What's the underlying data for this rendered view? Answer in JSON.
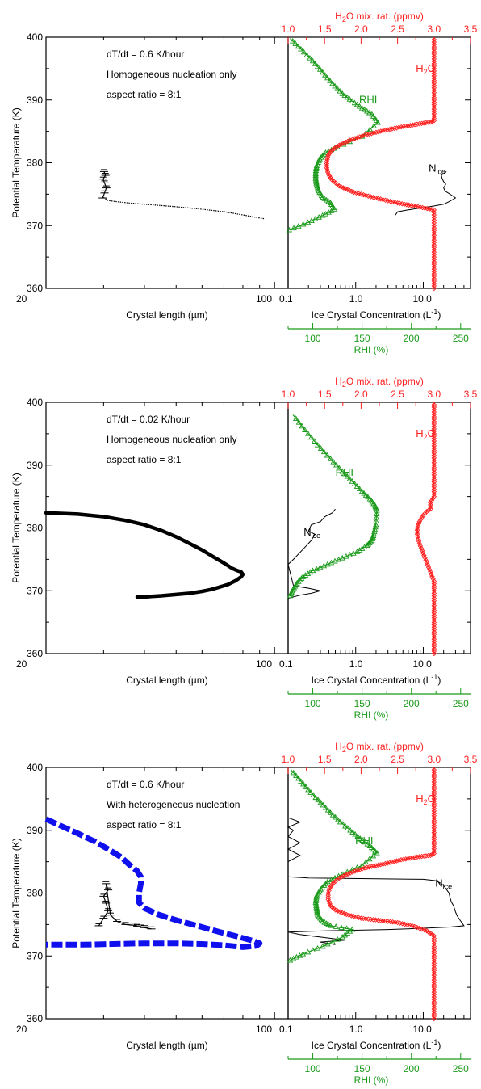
{
  "colors": {
    "axis": "#000000",
    "h2o": "#ff2020",
    "rhi": "#1a9a1a",
    "crystal_blue": "#1010ee",
    "nice": "#000000"
  },
  "chart_data": [
    {
      "panel": "top",
      "type": "line",
      "annotations": [
        "dT/dt = 0.6 K/hour",
        "Homogeneous nucleation only",
        "aspect ratio = 8:1"
      ],
      "left": {
        "xlabel": "Crystal length (µm)",
        "ylabel": "Potential Temperature (K)",
        "x_scale": "log",
        "xlim": [
          20,
          110
        ],
        "ylim": [
          360,
          400
        ],
        "x_ticks": [
          "20",
          "100"
        ],
        "y_ticks": [
          "360",
          "370",
          "380",
          "390",
          "400"
        ],
        "series": [
          {
            "color": "black",
            "style": "dots",
            "x": [
              30,
              30.3,
              31,
              33,
              36,
              40,
              45,
              50,
              55,
              60,
              65,
              70,
              76,
              80,
              84,
              88,
              93
            ],
            "y": [
              374.5,
              374.3,
              374.0,
              373.8,
              373.6,
              373.4,
              373.2,
              373.0,
              372.8,
              372.6,
              372.4,
              372.2,
              371.9,
              371.7,
              371.5,
              371.3,
              371.1
            ]
          },
          {
            "color": "black",
            "style": "hatched",
            "x": [
              29.8,
              30.2,
              30.6,
              30.2,
              29.9,
              30.4,
              30.1
            ],
            "y": [
              374.4,
              375.2,
              376.0,
              376.8,
              377.4,
              378.0,
              378.6
            ]
          }
        ]
      },
      "right": {
        "xlabel": "Ice Crystal Concentration (L",
        "xlabel_sup": "-1",
        "xlabel_end": ")",
        "x_scale": "log",
        "xlim": [
          0.1,
          50
        ],
        "x_ticks": [
          "0.1",
          "1.0",
          "10.0"
        ],
        "top_axis": {
          "label": "H",
          "label_sub": "2",
          "label_end": "O mix. rat. (ppmv)",
          "xlim": [
            1.0,
            3.5
          ],
          "ticks": [
            "1.0",
            "1.5",
            "2.0",
            "2.5",
            "3.0",
            "3.5"
          ]
        },
        "bottom_axis2": {
          "label": "RHI (%)",
          "xlim": [
            75,
            260
          ],
          "ticks": [
            "100",
            "150",
            "200",
            "250"
          ]
        },
        "labels": {
          "h2o": "H",
          "h2o_sub": "2",
          "h2o_end": "O",
          "rhi": "RHI",
          "nice": "N",
          "nice_sub": "ice"
        },
        "label_positions_data": {
          "h2o": [
            2.75,
            394.5
          ],
          "rhi": [
            147,
            389.5
          ],
          "nice": [
            12,
            378.6
          ]
        },
        "h2o": {
          "x": [
            3.0,
            3.0,
            3.0,
            3.0,
            2.78,
            2.5,
            2.2,
            1.9,
            1.7,
            1.6,
            1.55,
            1.53,
            1.53,
            1.55,
            1.6,
            1.7,
            1.85,
            2.05,
            2.3,
            2.55,
            2.8,
            2.95,
            3.0,
            3.0,
            3.0,
            3.0
          ],
          "y": [
            360,
            370,
            371.3,
            372.5,
            373.0,
            373.6,
            374.4,
            375.3,
            376.3,
            377.3,
            378.2,
            379.2,
            380.2,
            381.2,
            382.0,
            382.8,
            383.6,
            384.4,
            385.1,
            385.7,
            386.2,
            386.5,
            386.7,
            390,
            395,
            400
          ]
        },
        "rhi": {
          "x": [
            76,
            95,
            110,
            122,
            118,
            110,
            106,
            104,
            103,
            103,
            104,
            107,
            113,
            125,
            150,
            166,
            160,
            150,
            140,
            130,
            120,
            110,
            100,
            88,
            77
          ],
          "y": [
            369.3,
            370.5,
            371.6,
            372.6,
            373.6,
            374.5,
            375.5,
            376.5,
            377.5,
            378.5,
            379.5,
            380.6,
            381.6,
            382.5,
            384.2,
            386.4,
            387.7,
            388.7,
            389.8,
            391.0,
            392.6,
            394.4,
            396.2,
            398.1,
            399.8
          ]
        },
        "nice": {
          "x": [
            3.8,
            4.2,
            6.0,
            9.0,
            14.0,
            20.0,
            24.0,
            30.0,
            25.0,
            21.0,
            20.0,
            21.5,
            20.0,
            19.0,
            18.5,
            20.0,
            21.5,
            22.0
          ],
          "y": [
            371.6,
            372.2,
            372.5,
            372.8,
            373.1,
            373.4,
            373.8,
            374.4,
            375.0,
            375.5,
            376.0,
            376.6,
            377.0,
            377.5,
            378.0,
            378.3,
            378.5,
            378.6
          ]
        }
      }
    },
    {
      "panel": "middle",
      "type": "line",
      "annotations": [
        "dT/dt = 0.02 K/hour",
        "Homogeneous nucleation only",
        "aspect ratio = 8:1"
      ],
      "left": {
        "xlabel": "Crystal length (µm)",
        "ylabel": "Potential Temperature (K)",
        "x_scale": "log",
        "xlim": [
          20,
          110
        ],
        "ylim": [
          360,
          400
        ],
        "x_ticks": [
          "20",
          "100"
        ],
        "y_ticks": [
          "360",
          "370",
          "380",
          "390",
          "400"
        ],
        "series": [
          {
            "color": "black",
            "style": "thick",
            "x": [
              20,
              25,
              30,
              35,
              40,
              45,
              50,
              55,
              60,
              65,
              70,
              74,
              77,
              79,
              80,
              79,
              76,
              72,
              68,
              64,
              60,
              55,
              50,
              45,
              42,
              40,
              38
            ],
            "y": [
              382.4,
              382.2,
              381.8,
              381.2,
              380.5,
              379.6,
              378.6,
              377.5,
              376.5,
              375.4,
              374.4,
              373.6,
              373.2,
              373.0,
              372.6,
              372.2,
              371.6,
              371.0,
              370.6,
              370.2,
              369.9,
              369.6,
              369.4,
              369.2,
              369.1,
              369.0,
              369.0
            ]
          }
        ]
      },
      "right": {
        "xlabel": "Ice Crystal Concentration (L",
        "xlabel_sup": "-1",
        "xlabel_end": ")",
        "x_scale": "log",
        "xlim": [
          0.1,
          50
        ],
        "x_ticks": [
          "0.1",
          "1.0",
          "10.0"
        ],
        "top_axis": {
          "label": "H",
          "label_sub": "2",
          "label_end": "O mix. rat. (ppmv)",
          "xlim": [
            1.0,
            3.5
          ],
          "ticks": [
            "1.0",
            "1.5",
            "2.0",
            "2.5",
            "3.0",
            "3.5"
          ]
        },
        "bottom_axis2": {
          "label": "RHI (%)",
          "xlim": [
            75,
            260
          ],
          "ticks": [
            "100",
            "150",
            "200",
            "250"
          ]
        },
        "labels": {
          "h2o": "H",
          "h2o_sub": "2",
          "h2o_end": "O",
          "rhi": "RHI",
          "nice": "N",
          "nice_sub": "ice"
        },
        "label_positions_data": {
          "h2o": [
            2.75,
            394.5
          ],
          "rhi": [
            123,
            388.3
          ],
          "nice": [
            0.17,
            378.8
          ]
        },
        "h2o": {
          "x": [
            3.0,
            3.0,
            3.0,
            3.0,
            2.95,
            2.9,
            2.85,
            2.8,
            2.77,
            2.77,
            2.8,
            2.85,
            2.9,
            2.95,
            2.95,
            3.0,
            3.0,
            3.0
          ],
          "y": [
            360,
            368,
            370.0,
            371.5,
            373.0,
            374.5,
            376.0,
            377.5,
            379.0,
            380.0,
            381.0,
            382.0,
            382.6,
            383.0,
            384.0,
            385.0,
            390,
            400
          ]
        },
        "rhi": {
          "x": [
            77,
            80,
            84,
            90,
            100,
            115,
            130,
            145,
            155,
            160,
            162,
            164,
            165,
            163,
            158,
            150,
            140,
            130,
            118,
            105,
            92,
            80
          ],
          "y": [
            369.2,
            370.2,
            371.2,
            372.2,
            373.2,
            374.2,
            375.2,
            376.2,
            377.2,
            378.0,
            379.0,
            380.5,
            382.8,
            383.6,
            384.6,
            385.8,
            387.4,
            389.0,
            391.0,
            393.2,
            395.6,
            398.0
          ]
        },
        "nice": {
          "x": [
            0.1,
            0.15,
            0.22,
            0.3,
            0.2,
            0.12,
            0.1,
            0.12,
            0.18,
            0.22,
            0.25,
            0.2,
            0.22,
            0.3,
            0.35,
            0.45,
            0.5
          ],
          "y": [
            368.8,
            369.3,
            369.6,
            370.0,
            370.4,
            370.8,
            374.2,
            375.0,
            377.0,
            378.0,
            379.0,
            379.5,
            380.5,
            381.0,
            381.8,
            382.4,
            383.0
          ]
        }
      }
    },
    {
      "panel": "bottom",
      "type": "line",
      "annotations": [
        "dT/dt = 0.6 K/hour",
        "With heterogeneous nucleation",
        "aspect ratio = 8:1"
      ],
      "left": {
        "xlabel": "Crystal length (µm)",
        "ylabel": "Potential Temperature (K)",
        "x_scale": "log",
        "xlim": [
          20,
          110
        ],
        "ylim": [
          360,
          400
        ],
        "x_ticks": [
          "20",
          "100"
        ],
        "y_ticks": [
          "360",
          "370",
          "380",
          "390",
          "400"
        ],
        "series": [
          {
            "color": "blue",
            "style": "dashed-thick",
            "x": [
              20,
              22,
              25,
              28,
              31,
              34,
              36,
              38,
              39,
              39,
              38.5,
              38.5,
              40,
              44,
              50,
              58,
              68,
              78,
              86,
              90,
              88,
              80,
              70,
              60,
              50,
              40,
              32,
              26,
              22,
              20
            ],
            "y": [
              391.8,
              390.8,
              389.5,
              388.3,
              387.0,
              385.7,
              384.5,
              383.5,
              382.6,
              381.5,
              380.0,
              378.5,
              377.6,
              376.6,
              375.7,
              374.8,
              373.8,
              373.0,
              372.4,
              372.0,
              371.6,
              371.4,
              371.7,
              371.9,
              372.0,
              372.0,
              371.9,
              371.8,
              371.8,
              371.8
            ]
          },
          {
            "color": "black",
            "style": "hatched",
            "x": [
              29,
              30,
              31,
              30.5,
              30,
              31,
              30.5,
              31.5,
              33,
              35,
              37,
              38,
              39,
              40,
              42
            ],
            "y": [
              374.8,
              376.0,
              377.2,
              378.4,
              379.5,
              380.5,
              381.5,
              376.5,
              375.5,
              375.0,
              374.9,
              374.7,
              374.6,
              374.5,
              374.3
            ]
          }
        ]
      },
      "right": {
        "xlabel": "Ice Crystal Concentration (L",
        "xlabel_sup": "-1",
        "xlabel_end": ")",
        "x_scale": "log",
        "xlim": [
          0.1,
          50
        ],
        "x_ticks": [
          "0.1",
          "1.0",
          "10.0"
        ],
        "top_axis": {
          "label": "H",
          "label_sub": "2",
          "label_end": "O mix. rat. (ppmv)",
          "xlim": [
            1.0,
            3.5
          ],
          "ticks": [
            "1.0",
            "1.5",
            "2.0",
            "2.5",
            "3.0",
            "3.5"
          ]
        },
        "bottom_axis2": {
          "label": "RHI (%)",
          "xlim": [
            75,
            260
          ],
          "ticks": [
            "100",
            "150",
            "200",
            "250"
          ]
        },
        "labels": {
          "h2o": "H",
          "h2o_sub": "2",
          "h2o_end": "O",
          "rhi": "RHI",
          "nice": "N",
          "nice_sub": "ice"
        },
        "label_positions_data": {
          "h2o": [
            2.75,
            394.5
          ],
          "rhi": [
            143,
            387.8
          ],
          "nice": [
            15,
            381.0
          ]
        },
        "h2o": {
          "x": [
            3.0,
            3.0,
            3.0,
            3.0,
            2.9,
            2.7,
            2.5,
            2.3,
            2.0,
            1.8,
            1.65,
            1.58,
            1.55,
            1.55,
            1.57,
            1.62,
            1.7,
            1.85,
            2.05,
            2.3,
            2.55,
            2.8,
            2.95,
            3.0,
            3.0,
            3.0
          ],
          "y": [
            360,
            370,
            371.5,
            373.2,
            374.0,
            374.8,
            375.3,
            375.6,
            376.0,
            376.6,
            377.3,
            378.0,
            379.0,
            380.0,
            380.8,
            381.6,
            382.4,
            383.2,
            384.0,
            384.6,
            385.3,
            385.8,
            386.0,
            386.3,
            390,
            400
          ]
        },
        "rhi": {
          "x": [
            77,
            90,
            110,
            130,
            140,
            118,
            110,
            105,
            104,
            103,
            104,
            108,
            115,
            130,
            150,
            165,
            158,
            148,
            138,
            128,
            118,
            108,
            98,
            88,
            78
          ],
          "y": [
            369.3,
            370.3,
            371.5,
            373.0,
            374.2,
            374.8,
            375.5,
            376.5,
            377.5,
            378.5,
            379.6,
            380.6,
            381.8,
            383.0,
            384.4,
            386.4,
            387.5,
            388.7,
            390.0,
            391.3,
            392.8,
            394.4,
            396.0,
            397.8,
            399.6
          ]
        },
        "nice": {
          "x": [
            0.5,
            0.3,
            0.7,
            0.3,
            0.15,
            0.1,
            0.35,
            3.0,
            10,
            25,
            40,
            36,
            32,
            30,
            28,
            26,
            25,
            24,
            22,
            20,
            18,
            15,
            10,
            0.2,
            0.1,
            0.1,
            0.15,
            0.1,
            0.15,
            0.1,
            0.12,
            0.1,
            0.15,
            0.1
          ],
          "y": [
            371.8,
            372.2,
            372.5,
            373.0,
            373.4,
            373.8,
            374.0,
            374.2,
            374.4,
            374.6,
            374.8,
            375.5,
            376.3,
            377.0,
            378.0,
            378.6,
            379.2,
            380.0,
            380.6,
            381.2,
            381.6,
            382.0,
            382.2,
            382.4,
            382.6,
            385.0,
            386.0,
            387.0,
            388.0,
            389.0,
            390.0,
            390.5,
            391.3,
            392.0
          ]
        }
      }
    }
  ]
}
